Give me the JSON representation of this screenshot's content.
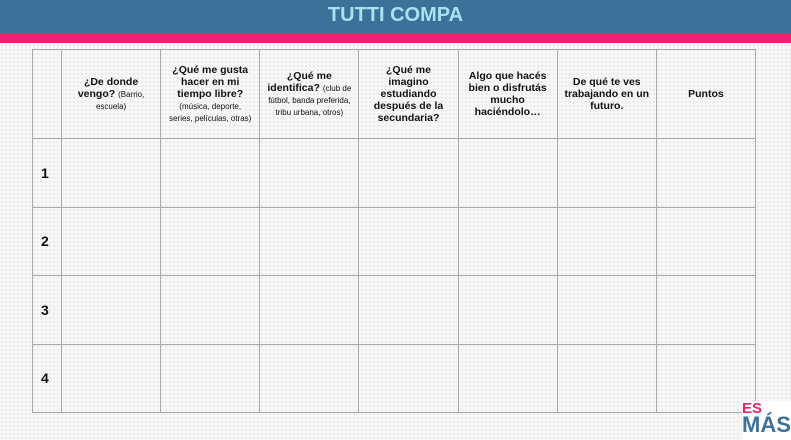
{
  "title": "TUTTI COMPA",
  "colors": {
    "header": "#3e7199",
    "stripe": "#e6246f",
    "title": "#a6e3f2"
  },
  "columns": [
    {
      "main": "¿De donde vengo?",
      "note": "(Barrio, escuela)"
    },
    {
      "main": "¿Qué me gusta hacer en mi tiempo libre?",
      "note": "(música, deporte, series, películas, otras)"
    },
    {
      "main": "¿Qué me identifica?",
      "note": "(club de fútbol, banda preferida, tribu urbana, otros)"
    },
    {
      "main": "¿Qué me imagino estudiando después de la secundaria?",
      "note": ""
    },
    {
      "main": "Algo que hacés bien o disfrutás mucho haciéndolo…",
      "note": ""
    },
    {
      "main": "De qué te ves trabajando en un futuro.",
      "note": ""
    },
    {
      "main": "Puntos",
      "note": ""
    }
  ],
  "rows": [
    "1",
    "2",
    "3",
    "4"
  ],
  "logo": {
    "top": "ES",
    "bottom": "MÁS"
  }
}
